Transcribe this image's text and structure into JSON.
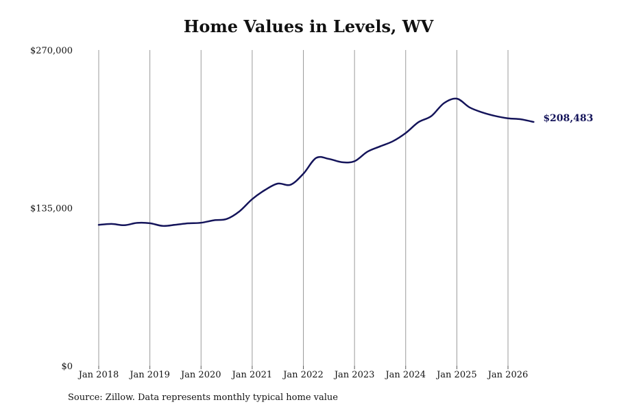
{
  "chart_data": {
    "type": "line",
    "title": "Home Values in Levels, WV",
    "xlabel": "",
    "ylabel": "",
    "ylim": [
      0,
      270000
    ],
    "y_ticks": [
      {
        "value": 0,
        "label": "$0"
      },
      {
        "value": 135000,
        "label": "$135,000"
      },
      {
        "value": 270000,
        "label": "$270,000"
      }
    ],
    "x_ticks": [
      {
        "value": "2018-01",
        "label": "Jan 2018"
      },
      {
        "value": "2019-01",
        "label": "Jan 2019"
      },
      {
        "value": "2020-01",
        "label": "Jan 2020"
      },
      {
        "value": "2021-01",
        "label": "Jan 2021"
      },
      {
        "value": "2022-01",
        "label": "Jan 2022"
      },
      {
        "value": "2023-01",
        "label": "Jan 2023"
      },
      {
        "value": "2024-01",
        "label": "Jan 2024"
      },
      {
        "value": "2025-01",
        "label": "Jan 2025"
      },
      {
        "value": "2026-01",
        "label": "Jan 2026"
      }
    ],
    "grid": "vertical lines at x ticks",
    "legend": "none",
    "line_color": "#14145a",
    "series": [
      {
        "x": [
          "2018-01",
          "2018-04",
          "2018-07",
          "2018-10",
          "2019-01",
          "2019-04",
          "2019-07",
          "2019-10",
          "2020-01",
          "2020-04",
          "2020-07",
          "2020-10",
          "2021-01",
          "2021-04",
          "2021-07",
          "2021-10",
          "2022-01",
          "2022-04",
          "2022-07",
          "2022-10",
          "2023-01",
          "2023-04",
          "2023-07",
          "2023-10",
          "2024-01",
          "2024-04",
          "2024-07",
          "2024-10",
          "2025-01",
          "2025-04",
          "2025-07",
          "2025-10",
          "2026-01",
          "2026-04",
          "2026-07"
        ],
        "values": [
          120500,
          121300,
          120200,
          122200,
          121900,
          119600,
          120600,
          121800,
          122300,
          124400,
          125500,
          132000,
          142500,
          150300,
          155800,
          154800,
          164200,
          177700,
          176900,
          174100,
          174900,
          183000,
          187600,
          192000,
          199000,
          208300,
          213500,
          224600,
          228400,
          220900,
          216600,
          213600,
          211600,
          210800,
          208483
        ]
      }
    ],
    "end_label": "$208,483",
    "source": "Source: Zillow. Data represents monthly typical home value"
  }
}
